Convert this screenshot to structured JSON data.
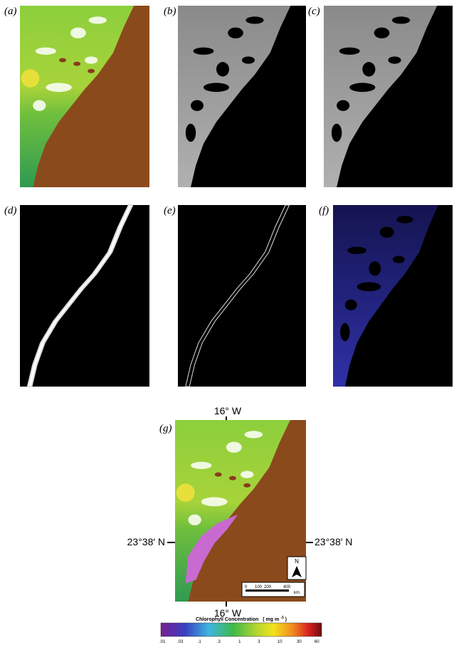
{
  "panels": [
    {
      "label": "(a)"
    },
    {
      "label": "(b)"
    },
    {
      "label": "(c)"
    },
    {
      "label": "(d)"
    },
    {
      "label": "(e)"
    },
    {
      "label": "(f)"
    },
    {
      "label": "(g)"
    }
  ],
  "map_labels": {
    "top": "16° W",
    "bottom": "16° W",
    "left": "23°38′ N",
    "right": "23°38′ N",
    "north": "N",
    "scale": [
      "0",
      "100",
      "200",
      "400"
    ],
    "scale_unit": "km"
  },
  "colorbar": {
    "title": "Chlorophyll Concentration",
    "unit_prefix": "( mg  m",
    "unit_exponent": "-3",
    "unit_suffix": ")",
    "ticks": [
      ".01",
      ".03",
      ".1",
      ".3",
      "1",
      "3",
      "10",
      "30",
      "60"
    ]
  }
}
